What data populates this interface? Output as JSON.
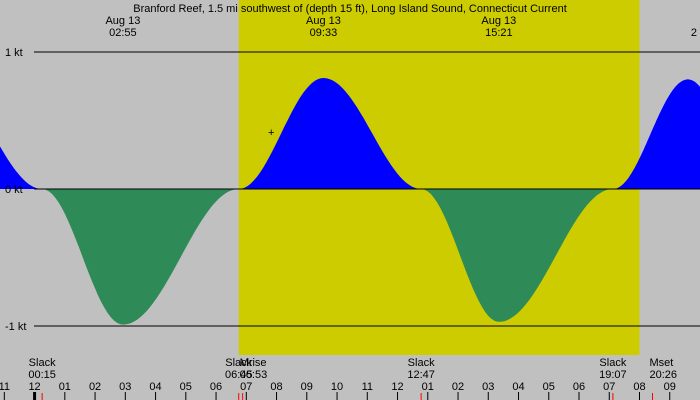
{
  "chart_data": {
    "type": "area",
    "title": "Branford Reef, 1.5 mi southwest of (depth 15 ft), Long Island Sound, Connecticut Current",
    "units": "kt",
    "x_start_hours": 22.857,
    "x_end_hours": 46.0,
    "ylim": [
      -1.2,
      1.0
    ],
    "y_ticks": [
      {
        "value": 1,
        "label": "1 kt"
      },
      {
        "value": 0,
        "label": "0 kt"
      },
      {
        "value": -1,
        "label": "-1 kt"
      }
    ],
    "daylight": {
      "start_hours": 30.75,
      "end_hours": 44.0
    },
    "extrema": [
      {
        "date": "Aug 13",
        "time": "02:55",
        "hours": 26.92,
        "value": -0.99,
        "date_label_hours": 26.92
      },
      {
        "date": "Aug 13",
        "time": "09:33",
        "hours": 33.55,
        "value": 0.81,
        "date_label_hours": 33.55
      },
      {
        "date": "Aug 13",
        "time": "15:21",
        "hours": 39.35,
        "value": -0.97,
        "date_label_hours": 39.35
      },
      {
        "date": "",
        "time": "2",
        "hours": 45.6,
        "value": 0.8,
        "date_label_hours": 45.8
      }
    ],
    "slack": [
      {
        "label": "Slack",
        "time": "00:15",
        "hours": 24.25
      },
      {
        "label": "Slack",
        "time": "06:45",
        "hours": 30.75
      },
      {
        "label": "Slack",
        "time": "12:47",
        "hours": 36.78
      },
      {
        "label": "Slack",
        "time": "19:07",
        "hours": 43.12
      }
    ],
    "moon_events": [
      {
        "label": "Mrise",
        "time": "06:53",
        "hours": 30.88
      },
      {
        "label": "Mset",
        "time": "20:26",
        "hours": 44.43
      }
    ],
    "hour_labels": [
      "11",
      "12",
      "01",
      "02",
      "03",
      "04",
      "05",
      "06",
      "07",
      "08",
      "09",
      "10",
      "11",
      "12",
      "01",
      "02",
      "03",
      "04",
      "05",
      "06",
      "07",
      "08",
      "09"
    ],
    "first_hour": 23,
    "colors": {
      "night": "#c0c0c0",
      "day": "#cccc00",
      "flood": "#0000ff",
      "ebb": "#2e8b57",
      "slack_tick": "#ff0000"
    }
  }
}
